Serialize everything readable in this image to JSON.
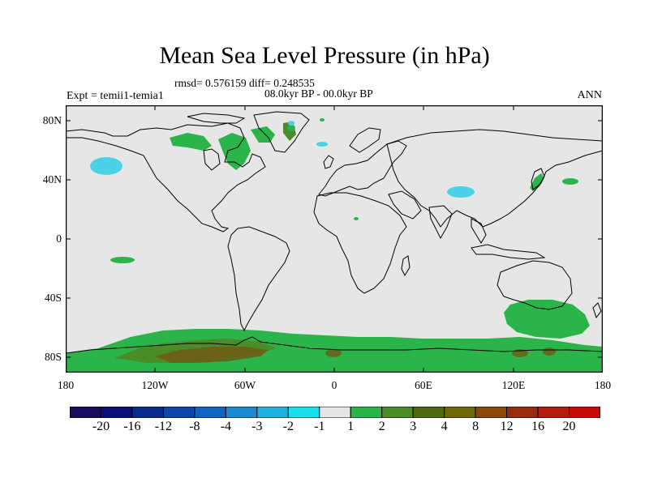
{
  "title": "Mean Sea Level Pressure (in hPa)",
  "stats_line": "rmsd= 0.576159 diff= 0.248535",
  "period_line": "08.0kyr BP - 00.0kyr BP",
  "experiment": "Expt = temii1-temia1",
  "season": "ANN",
  "y_axis_labels": [
    "80N",
    "40N",
    "0",
    "40S",
    "80S"
  ],
  "x_axis_labels": [
    "180",
    "120W",
    "60W",
    "0",
    "60E",
    "120E",
    "180"
  ],
  "colorbar": {
    "labels": [
      "-20",
      "-16",
      "-12",
      "-8",
      "-4",
      "-3",
      "-2",
      "-1",
      "1",
      "2",
      "3",
      "4",
      "8",
      "12",
      "16",
      "20"
    ],
    "colors": [
      "#1a0a5e",
      "#0b0f7a",
      "#0a2a8c",
      "#0e45a8",
      "#1264c0",
      "#1a8bd0",
      "#22b2e0",
      "#18e0ec",
      "#e6e6e6",
      "#2ab44a",
      "#4a8c28",
      "#4e6a10",
      "#6e6a0a",
      "#8a4a0a",
      "#9a2a10",
      "#b41a10",
      "#c80a0a"
    ]
  },
  "map_colors": {
    "ocean_background": "#e6e6e6",
    "positive_1_2": "#2ab44a",
    "positive_2_3": "#4a8c28",
    "positive_4_8": "#6e5a14",
    "negative_1_2": "#4cd2e8",
    "coastline": "#000000"
  }
}
